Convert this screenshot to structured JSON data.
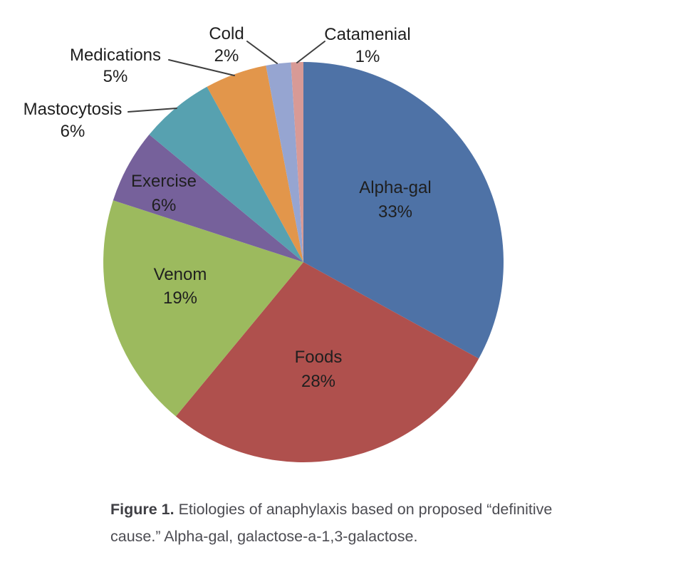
{
  "figure": {
    "caption_label": "Figure 1.",
    "caption_lines": [
      "Etiologies of anaphylaxis based on proposed “definitive",
      "cause.” Alpha-gal, galactose-a-1,3-galactose."
    ]
  },
  "chart_data": {
    "type": "pie",
    "start_angle_deg": 0,
    "direction": "clockwise",
    "legend": "none",
    "label_style": "category name and percent",
    "slices": [
      {
        "label": "Alpha-gal",
        "value": 33,
        "pct_label": "33%",
        "color": "#4E72A6",
        "label_placement": "inside"
      },
      {
        "label": "Foods",
        "value": 28,
        "pct_label": "28%",
        "color": "#AF504D",
        "label_placement": "inside"
      },
      {
        "label": "Venom",
        "value": 19,
        "pct_label": "19%",
        "color": "#9CBA5E",
        "label_placement": "inside"
      },
      {
        "label": "Exercise",
        "value": 6,
        "pct_label": "6%",
        "color": "#76619B",
        "label_placement": "inside"
      },
      {
        "label": "Mastocytosis",
        "value": 6,
        "pct_label": "6%",
        "color": "#57A1B0",
        "label_placement": "outside-with-leader"
      },
      {
        "label": "Medications",
        "value": 5,
        "pct_label": "5%",
        "color": "#E2964B",
        "label_placement": "outside-with-leader"
      },
      {
        "label": "Cold",
        "value": 2,
        "pct_label": "2%",
        "color": "#96A5D1",
        "label_placement": "outside-with-leader"
      },
      {
        "label": "Catamenial",
        "value": 1,
        "pct_label": "1%",
        "color": "#D89A96",
        "label_placement": "outside-with-leader"
      }
    ]
  }
}
